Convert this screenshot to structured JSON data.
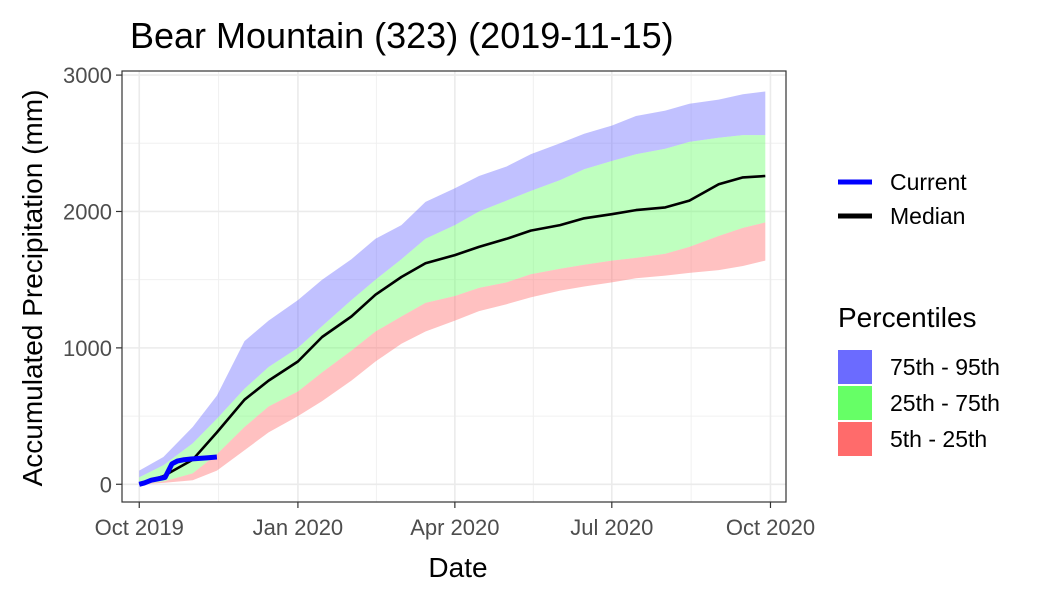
{
  "chart_data": {
    "type": "area",
    "title": "Bear Mountain (323) (2019-11-15)",
    "xlabel": "Date",
    "ylabel": "Accumulated Precipitation (mm)",
    "x_ticks": [
      "Oct 2019",
      "Jan 2020",
      "Apr 2020",
      "Jul 2020",
      "Oct 2020"
    ],
    "x_tick_dates": [
      "2019-10-01",
      "2020-01-01",
      "2020-04-01",
      "2020-07-01",
      "2020-10-01"
    ],
    "x_range": [
      "2019-09-21",
      "2020-10-10"
    ],
    "y_ticks": [
      0,
      1000,
      2000,
      3000
    ],
    "ylim": [
      -130,
      3030
    ],
    "grid": true,
    "legend_position": "right",
    "colors": {
      "current": "#0000ff",
      "median": "#000000",
      "p75_95": "#6b6bff",
      "p25_75": "#66ff66",
      "p5_25": "#ff6b6b"
    },
    "band_opacity": 0.42,
    "bands_x": [
      "2019-10-01",
      "2019-10-15",
      "2019-11-01",
      "2019-11-15",
      "2019-12-01",
      "2019-12-15",
      "2020-01-01",
      "2020-01-15",
      "2020-02-01",
      "2020-02-15",
      "2020-03-01",
      "2020-03-15",
      "2020-04-01",
      "2020-04-15",
      "2020-05-01",
      "2020-05-15",
      "2020-06-01",
      "2020-06-15",
      "2020-07-01",
      "2020-07-15",
      "2020-08-01",
      "2020-08-15",
      "2020-09-01",
      "2020-09-15",
      "2020-09-28"
    ],
    "series": [
      {
        "name": "95th",
        "values": [
          100,
          200,
          420,
          650,
          1050,
          1200,
          1350,
          1500,
          1650,
          1800,
          1900,
          2070,
          2170,
          2260,
          2330,
          2420,
          2500,
          2570,
          2630,
          2700,
          2740,
          2790,
          2820,
          2860,
          2880
        ]
      },
      {
        "name": "75th",
        "values": [
          50,
          140,
          300,
          480,
          700,
          860,
          1000,
          1160,
          1350,
          1500,
          1650,
          1800,
          1900,
          2000,
          2080,
          2150,
          2230,
          2310,
          2370,
          2420,
          2460,
          2510,
          2540,
          2560,
          2560
        ]
      },
      {
        "name": "Median",
        "values": [
          0,
          60,
          180,
          380,
          620,
          760,
          900,
          1080,
          1230,
          1390,
          1520,
          1620,
          1680,
          1740,
          1800,
          1860,
          1900,
          1950,
          1980,
          2010,
          2030,
          2080,
          2200,
          2250,
          2260
        ]
      },
      {
        "name": "25th",
        "values": [
          0,
          20,
          80,
          220,
          420,
          570,
          680,
          820,
          980,
          1120,
          1230,
          1330,
          1380,
          1440,
          1480,
          1540,
          1580,
          1610,
          1640,
          1660,
          1690,
          1740,
          1820,
          1880,
          1920
        ]
      },
      {
        "name": "5th",
        "values": [
          0,
          10,
          30,
          100,
          250,
          380,
          500,
          610,
          760,
          900,
          1030,
          1120,
          1200,
          1270,
          1320,
          1370,
          1420,
          1450,
          1480,
          1510,
          1530,
          1550,
          1570,
          1600,
          1640
        ]
      },
      {
        "name": "Current",
        "x": [
          "2019-10-01",
          "2019-10-04",
          "2019-10-08",
          "2019-10-12",
          "2019-10-16",
          "2019-10-20",
          "2019-10-23",
          "2019-10-27",
          "2019-10-31",
          "2019-11-05",
          "2019-11-10",
          "2019-11-15"
        ],
        "values": [
          0,
          10,
          30,
          40,
          50,
          150,
          170,
          180,
          185,
          190,
          195,
          200
        ]
      }
    ],
    "legend": {
      "lines": [
        {
          "label": "Current",
          "color": "#0000ff"
        },
        {
          "label": "Median",
          "color": "#000000"
        }
      ],
      "percentiles_title": "Percentiles",
      "fills": [
        {
          "label": "75th - 95th",
          "color": "#6b6bff"
        },
        {
          "label": "25th - 75th",
          "color": "#66ff66"
        },
        {
          "label": "5th - 25th",
          "color": "#ff6b6b"
        }
      ]
    }
  }
}
